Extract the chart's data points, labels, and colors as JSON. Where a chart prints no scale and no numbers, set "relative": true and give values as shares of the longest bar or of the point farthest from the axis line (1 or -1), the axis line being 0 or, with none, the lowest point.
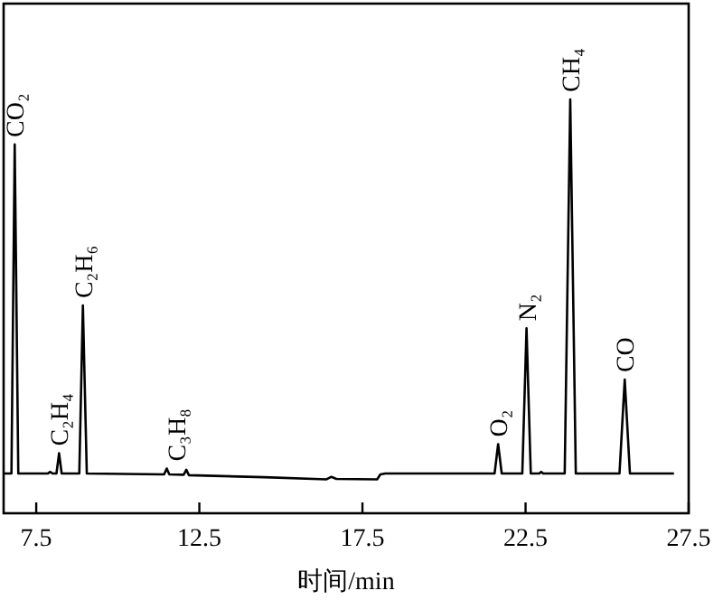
{
  "chart_data": {
    "type": "line",
    "relative": true,
    "xlabel": "时间/min",
    "xlim": [
      6.5,
      27.5
    ],
    "xticks": [
      7.5,
      12.5,
      17.5,
      22.5,
      27.5
    ],
    "grid": false,
    "series": [
      {
        "color": "#000000",
        "x": [
          6.5,
          6.74,
          6.84,
          6.95,
          7.85,
          7.93,
          8.0,
          8.12,
          8.2,
          8.28,
          8.82,
          8.93,
          9.05,
          11.42,
          11.5,
          11.58,
          12.02,
          12.1,
          12.18,
          14.5,
          16.4,
          16.55,
          16.7,
          17.95,
          18.05,
          18.2,
          21.55,
          21.66,
          21.77,
          22.4,
          22.53,
          22.66,
          22.92,
          22.98,
          23.04,
          23.7,
          23.87,
          24.04,
          25.38,
          25.54,
          25.7,
          27.05
        ],
        "values": [
          0.096,
          0.096,
          0.891,
          0.096,
          0.096,
          0.1,
          0.096,
          0.096,
          0.145,
          0.096,
          0.096,
          0.502,
          0.096,
          0.094,
          0.108,
          0.094,
          0.093,
          0.105,
          0.092,
          0.087,
          0.082,
          0.088,
          0.083,
          0.082,
          0.094,
          0.096,
          0.096,
          0.167,
          0.096,
          0.096,
          0.447,
          0.096,
          0.096,
          0.1,
          0.096,
          0.096,
          1.0,
          0.096,
          0.096,
          0.323,
          0.096,
          0.096
        ]
      }
    ],
    "annotations": [
      {
        "text": "CO₂",
        "x": 6.84,
        "y": 0.891
      },
      {
        "text": "C₂H₄",
        "x": 8.2,
        "y": 0.145
      },
      {
        "text": "C₂H₆",
        "x": 8.93,
        "y": 0.502
      },
      {
        "text": "C₃H₈",
        "x": 11.8,
        "y": 0.108
      },
      {
        "text": "O₂",
        "x": 21.66,
        "y": 0.167
      },
      {
        "text": "N₂",
        "x": 22.53,
        "y": 0.447
      },
      {
        "text": "CH₄",
        "x": 23.87,
        "y": 1.0
      },
      {
        "text": "CO",
        "x": 25.54,
        "y": 0.323
      }
    ]
  }
}
